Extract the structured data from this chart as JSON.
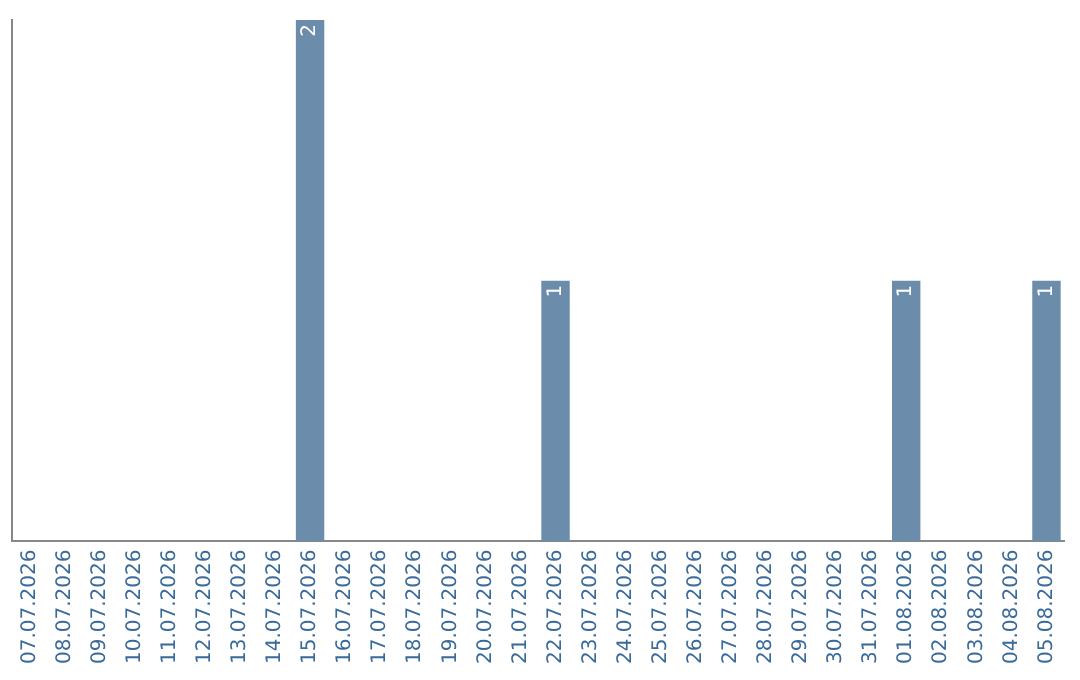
{
  "chart_data": {
    "type": "bar",
    "categories": [
      "07.07.2026",
      "08.07.2026",
      "09.07.2026",
      "10.07.2026",
      "11.07.2026",
      "12.07.2026",
      "13.07.2026",
      "14.07.2026",
      "15.07.2026",
      "16.07.2026",
      "17.07.2026",
      "18.07.2026",
      "19.07.2026",
      "20.07.2026",
      "21.07.2026",
      "22.07.2026",
      "23.07.2026",
      "24.07.2026",
      "25.07.2026",
      "26.07.2026",
      "27.07.2026",
      "28.07.2026",
      "29.07.2026",
      "30.07.2026",
      "31.07.2026",
      "01.08.2026",
      "02.08.2026",
      "03.08.2026",
      "04.08.2026",
      "05.08.2026"
    ],
    "values": [
      0,
      0,
      0,
      0,
      0,
      0,
      0,
      0,
      2,
      0,
      0,
      0,
      0,
      0,
      0,
      1,
      0,
      0,
      0,
      0,
      0,
      0,
      0,
      0,
      0,
      1,
      0,
      0,
      0,
      1
    ],
    "value_labels": [
      null,
      null,
      null,
      null,
      null,
      null,
      null,
      null,
      "2",
      null,
      null,
      null,
      null,
      null,
      null,
      "1",
      null,
      null,
      null,
      null,
      null,
      null,
      null,
      null,
      null,
      "1",
      null,
      null,
      null,
      "1"
    ],
    "color": "#6b8cab",
    "ylim": [
      0,
      2
    ],
    "tick_labels": "x",
    "grid": false,
    "legend": false
  }
}
